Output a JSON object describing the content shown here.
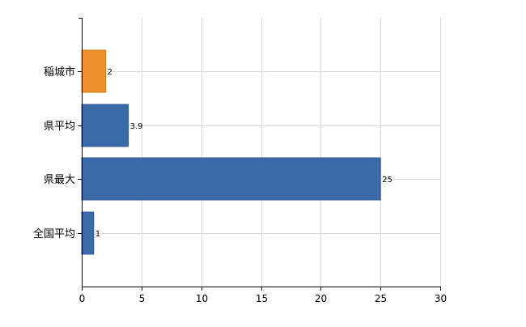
{
  "chart_data": {
    "type": "bar",
    "orientation": "horizontal",
    "categories": [
      "稲城市",
      "県平均",
      "県最大",
      "全国平均"
    ],
    "values": [
      2,
      3.9,
      25,
      1
    ],
    "data_labels": [
      "2",
      "3.9",
      "25",
      "1"
    ],
    "xlim": [
      0,
      30
    ],
    "x_ticks": [
      0,
      5,
      10,
      15,
      20,
      25,
      30
    ],
    "x_tick_labels": [
      "0",
      "5",
      "10",
      "15",
      "20",
      "25",
      "30"
    ],
    "grid": true,
    "legend": "none",
    "highlight_index": 0,
    "colors": {
      "highlight": "#f0912f",
      "highlight_border": "#d97b1c",
      "default": "#3b6aa8",
      "default_border": "#2f5a94",
      "grid": "#d9d9d9",
      "axis": "#000000"
    }
  }
}
